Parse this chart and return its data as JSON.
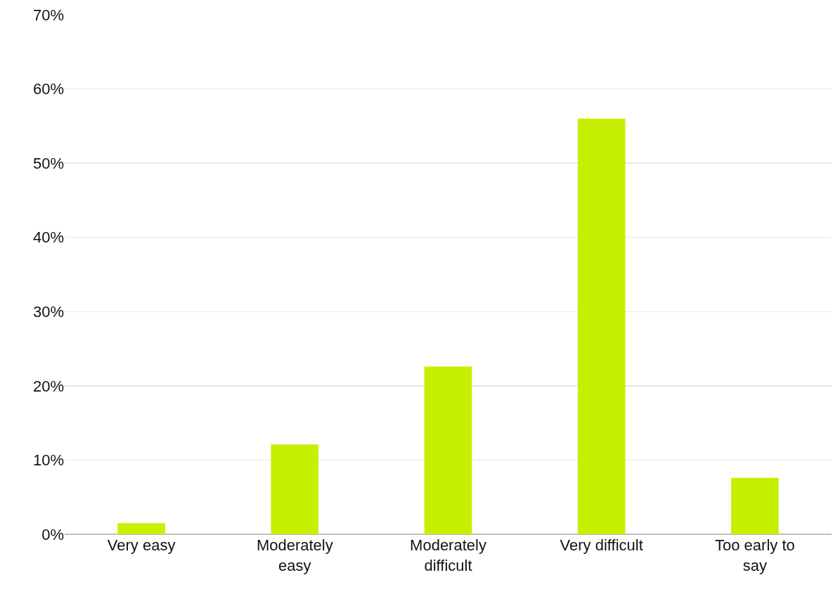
{
  "chart_data": {
    "type": "bar",
    "categories": [
      "Very easy",
      "Moderately easy",
      "Moderately difficult",
      "Very difficult",
      "Too early to say"
    ],
    "values": [
      1.5,
      12.1,
      22.6,
      56.0,
      7.6
    ],
    "color": "#c5f000",
    "ylim": [
      0,
      70
    ],
    "yticks": [
      {
        "value": 0,
        "label": "0%"
      },
      {
        "value": 10,
        "label": "10%"
      },
      {
        "value": 20,
        "label": "20%"
      },
      {
        "value": 30,
        "label": "30%"
      },
      {
        "value": 40,
        "label": "40%"
      },
      {
        "value": 50,
        "label": "50%"
      },
      {
        "value": 60,
        "label": "60%"
      },
      {
        "value": 70,
        "label": "70%"
      }
    ],
    "grid": "y"
  }
}
